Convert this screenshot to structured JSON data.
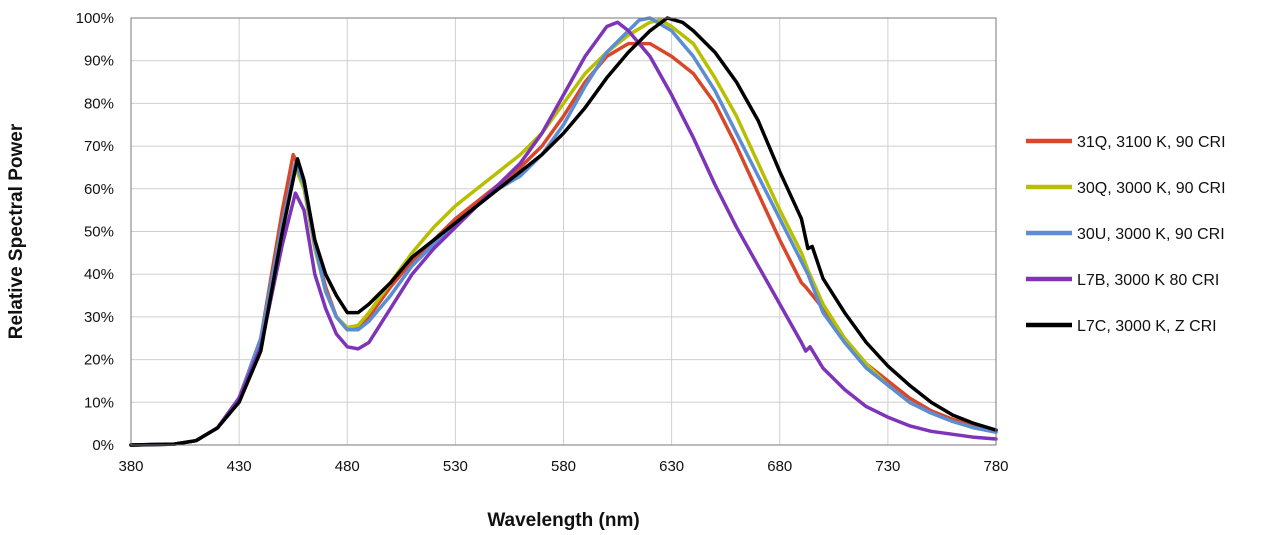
{
  "chart_data": {
    "type": "line",
    "title": "",
    "xlabel": "Wavelength (nm)",
    "ylabel": "Relative Spectral Power",
    "xlim": [
      380,
      780
    ],
    "ylim": [
      0,
      100
    ],
    "xticks": [
      380,
      430,
      480,
      530,
      580,
      630,
      680,
      730,
      780
    ],
    "yticks": [
      0,
      10,
      20,
      30,
      40,
      50,
      60,
      70,
      80,
      90,
      100
    ],
    "ytick_labels": [
      "0%",
      "10%",
      "20%",
      "30%",
      "40%",
      "50%",
      "60%",
      "70%",
      "80%",
      "90%",
      "100%"
    ],
    "grid": true,
    "legend_position": "right",
    "series": [
      {
        "name": "31Q, 3100 K, 90 CRI",
        "color": "#d9472b",
        "points": [
          [
            380,
            0
          ],
          [
            400,
            0.2
          ],
          [
            410,
            1
          ],
          [
            420,
            4
          ],
          [
            430,
            11
          ],
          [
            440,
            25
          ],
          [
            450,
            55
          ],
          [
            455,
            68
          ],
          [
            460,
            62
          ],
          [
            465,
            47
          ],
          [
            470,
            37
          ],
          [
            475,
            30
          ],
          [
            480,
            27
          ],
          [
            485,
            27.5
          ],
          [
            490,
            30
          ],
          [
            500,
            37
          ],
          [
            510,
            43
          ],
          [
            520,
            48
          ],
          [
            530,
            53
          ],
          [
            540,
            57
          ],
          [
            550,
            61
          ],
          [
            560,
            65
          ],
          [
            570,
            70
          ],
          [
            580,
            77
          ],
          [
            590,
            85
          ],
          [
            600,
            91
          ],
          [
            610,
            94
          ],
          [
            620,
            94
          ],
          [
            630,
            91
          ],
          [
            640,
            87
          ],
          [
            650,
            80
          ],
          [
            660,
            70
          ],
          [
            670,
            59
          ],
          [
            680,
            48
          ],
          [
            690,
            38
          ],
          [
            692,
            37
          ],
          [
            700,
            32
          ],
          [
            710,
            25
          ],
          [
            720,
            19
          ],
          [
            730,
            15
          ],
          [
            740,
            11
          ],
          [
            750,
            8
          ],
          [
            760,
            6
          ],
          [
            770,
            4.5
          ],
          [
            780,
            3.5
          ]
        ]
      },
      {
        "name": "30Q, 3000 K, 90 CRI",
        "color": "#b8bf00",
        "points": [
          [
            380,
            0
          ],
          [
            400,
            0.2
          ],
          [
            410,
            1
          ],
          [
            420,
            4
          ],
          [
            430,
            11
          ],
          [
            440,
            24
          ],
          [
            450,
            52
          ],
          [
            456,
            65
          ],
          [
            460,
            60
          ],
          [
            465,
            46
          ],
          [
            470,
            36
          ],
          [
            475,
            30
          ],
          [
            480,
            27.5
          ],
          [
            485,
            28
          ],
          [
            490,
            31
          ],
          [
            500,
            38
          ],
          [
            510,
            45
          ],
          [
            520,
            51
          ],
          [
            530,
            56
          ],
          [
            540,
            60
          ],
          [
            550,
            64
          ],
          [
            560,
            68
          ],
          [
            570,
            73
          ],
          [
            580,
            80
          ],
          [
            590,
            87
          ],
          [
            600,
            92
          ],
          [
            610,
            96
          ],
          [
            620,
            99
          ],
          [
            625,
            99.5
          ],
          [
            630,
            98
          ],
          [
            640,
            94
          ],
          [
            650,
            86
          ],
          [
            660,
            77
          ],
          [
            670,
            66
          ],
          [
            680,
            55
          ],
          [
            690,
            45
          ],
          [
            693,
            41
          ],
          [
            700,
            33
          ],
          [
            710,
            25
          ],
          [
            720,
            19
          ],
          [
            730,
            14
          ],
          [
            740,
            10
          ],
          [
            750,
            7.5
          ],
          [
            760,
            5.5
          ],
          [
            770,
            4
          ],
          [
            780,
            3
          ]
        ]
      },
      {
        "name": "30U, 3000 K, 90 CRI",
        "color": "#5b8dd4",
        "points": [
          [
            380,
            0
          ],
          [
            400,
            0.2
          ],
          [
            410,
            1
          ],
          [
            420,
            4
          ],
          [
            430,
            11
          ],
          [
            440,
            25
          ],
          [
            450,
            52
          ],
          [
            456,
            66
          ],
          [
            460,
            61
          ],
          [
            465,
            47
          ],
          [
            470,
            36
          ],
          [
            475,
            30
          ],
          [
            480,
            27
          ],
          [
            485,
            27
          ],
          [
            490,
            29
          ],
          [
            500,
            35
          ],
          [
            510,
            42
          ],
          [
            520,
            47
          ],
          [
            530,
            52
          ],
          [
            540,
            56
          ],
          [
            550,
            60
          ],
          [
            560,
            63
          ],
          [
            570,
            68
          ],
          [
            580,
            75
          ],
          [
            590,
            84
          ],
          [
            600,
            92
          ],
          [
            610,
            97
          ],
          [
            615,
            99.5
          ],
          [
            620,
            100
          ],
          [
            630,
            97
          ],
          [
            640,
            91
          ],
          [
            650,
            83
          ],
          [
            660,
            73
          ],
          [
            670,
            63
          ],
          [
            680,
            53
          ],
          [
            690,
            43
          ],
          [
            693,
            40
          ],
          [
            700,
            31
          ],
          [
            710,
            24
          ],
          [
            720,
            18
          ],
          [
            730,
            14
          ],
          [
            740,
            10
          ],
          [
            750,
            7.5
          ],
          [
            760,
            5.5
          ],
          [
            770,
            4
          ],
          [
            780,
            3
          ]
        ]
      },
      {
        "name": "L7B, 3000 K 80 CRI",
        "color": "#7e34b8",
        "points": [
          [
            380,
            0
          ],
          [
            400,
            0.2
          ],
          [
            410,
            1
          ],
          [
            420,
            4
          ],
          [
            430,
            11
          ],
          [
            440,
            23
          ],
          [
            450,
            47
          ],
          [
            456,
            59
          ],
          [
            460,
            55
          ],
          [
            465,
            40
          ],
          [
            470,
            32
          ],
          [
            475,
            26
          ],
          [
            480,
            23
          ],
          [
            485,
            22.5
          ],
          [
            490,
            24
          ],
          [
            500,
            32
          ],
          [
            510,
            40
          ],
          [
            520,
            46
          ],
          [
            530,
            51
          ],
          [
            540,
            56
          ],
          [
            550,
            61
          ],
          [
            560,
            66
          ],
          [
            570,
            73
          ],
          [
            580,
            82
          ],
          [
            590,
            91
          ],
          [
            600,
            98
          ],
          [
            605,
            99
          ],
          [
            610,
            97
          ],
          [
            620,
            91
          ],
          [
            630,
            82
          ],
          [
            640,
            72
          ],
          [
            650,
            61
          ],
          [
            660,
            51
          ],
          [
            670,
            42
          ],
          [
            680,
            33
          ],
          [
            690,
            24
          ],
          [
            692,
            22
          ],
          [
            694,
            23
          ],
          [
            700,
            18
          ],
          [
            710,
            13
          ],
          [
            720,
            9
          ],
          [
            730,
            6.5
          ],
          [
            740,
            4.5
          ],
          [
            750,
            3.2
          ],
          [
            760,
            2.5
          ],
          [
            770,
            1.8
          ],
          [
            780,
            1.4
          ]
        ]
      },
      {
        "name": "L7C, 3000 K, Z CRI",
        "color": "#000000",
        "points": [
          [
            380,
            0
          ],
          [
            400,
            0.2
          ],
          [
            410,
            1
          ],
          [
            420,
            4
          ],
          [
            430,
            10
          ],
          [
            440,
            22
          ],
          [
            450,
            50
          ],
          [
            457,
            67
          ],
          [
            460,
            62
          ],
          [
            465,
            48
          ],
          [
            470,
            40
          ],
          [
            475,
            35
          ],
          [
            480,
            31
          ],
          [
            485,
            31
          ],
          [
            490,
            33
          ],
          [
            500,
            38
          ],
          [
            510,
            44
          ],
          [
            520,
            48
          ],
          [
            530,
            52
          ],
          [
            540,
            56
          ],
          [
            550,
            60
          ],
          [
            560,
            64
          ],
          [
            570,
            68
          ],
          [
            580,
            73
          ],
          [
            590,
            79
          ],
          [
            600,
            86
          ],
          [
            610,
            92
          ],
          [
            620,
            97
          ],
          [
            628,
            100
          ],
          [
            635,
            99
          ],
          [
            640,
            97
          ],
          [
            650,
            92
          ],
          [
            660,
            85
          ],
          [
            670,
            76
          ],
          [
            680,
            64
          ],
          [
            690,
            53
          ],
          [
            693,
            46
          ],
          [
            695,
            46.5
          ],
          [
            700,
            39
          ],
          [
            710,
            31
          ],
          [
            720,
            24
          ],
          [
            730,
            18.5
          ],
          [
            740,
            14
          ],
          [
            750,
            10
          ],
          [
            760,
            7
          ],
          [
            770,
            5
          ],
          [
            780,
            3.5
          ]
        ]
      }
    ]
  }
}
